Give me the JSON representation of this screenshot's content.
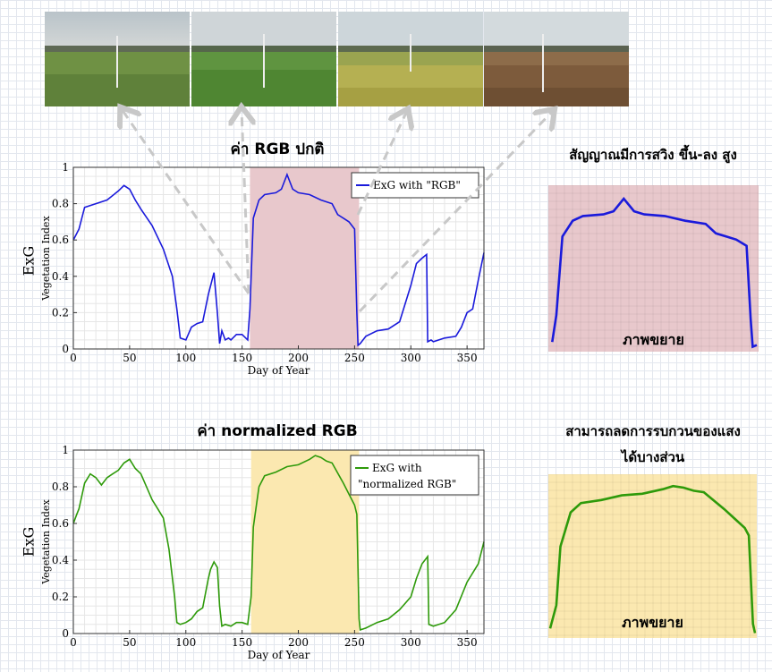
{
  "photos": [
    {
      "name": "young-wheat-field"
    },
    {
      "name": "green-wheat-field"
    },
    {
      "name": "ripening-wheat-field"
    },
    {
      "name": "harvested-field"
    }
  ],
  "top_title": "ค่า RGB ปกติ",
  "bottom_title": "ค่า normalized RGB",
  "top_side_title": "สัญญาณมีการสวิง ขึ้น-ลง สูง",
  "bottom_side_title_line1": "สามารถลดการรบกวนของแสง",
  "bottom_side_title_line2": "ได้บางส่วน",
  "zoom_label_top": "ภาพขยาย",
  "zoom_label_bottom": "ภาพขยาย",
  "exg_label_top": "ExG",
  "exg_label_bottom": "ExG",
  "colors": {
    "rgb_series": "#1a1adb",
    "norm_series": "#2e9a0a",
    "highlight_top": "#e8c8cc",
    "highlight_bottom": "#fbe8b0",
    "arrow": "#c8c8c8"
  },
  "chart_data": [
    {
      "type": "line",
      "title": "",
      "xlabel": "Day of Year",
      "ylabel": "Vegetation Index",
      "xlim": [
        0,
        365
      ],
      "ylim": [
        0,
        1
      ],
      "xticks": [
        0,
        50,
        100,
        150,
        200,
        250,
        300,
        350
      ],
      "yticks": [
        0,
        0.2,
        0.4,
        0.6,
        0.8,
        1
      ],
      "grid": true,
      "legend_position": "top-right",
      "highlight_range": [
        157,
        254
      ],
      "series": [
        {
          "name": "ExG with \"RGB\"",
          "x": [
            0,
            5,
            10,
            20,
            30,
            40,
            45,
            50,
            55,
            60,
            70,
            80,
            88,
            92,
            95,
            100,
            105,
            110,
            115,
            120,
            125,
            128,
            130,
            132,
            135,
            138,
            140,
            145,
            150,
            155,
            157,
            160,
            165,
            170,
            180,
            185,
            190,
            195,
            200,
            210,
            220,
            230,
            235,
            240,
            245,
            250,
            252,
            253,
            255,
            260,
            270,
            280,
            290,
            300,
            305,
            310,
            314,
            315,
            318,
            320,
            330,
            340,
            345,
            350,
            355,
            360,
            365
          ],
          "y": [
            0.6,
            0.66,
            0.78,
            0.8,
            0.82,
            0.87,
            0.9,
            0.88,
            0.82,
            0.77,
            0.68,
            0.55,
            0.4,
            0.22,
            0.06,
            0.05,
            0.12,
            0.14,
            0.15,
            0.3,
            0.42,
            0.2,
            0.03,
            0.1,
            0.05,
            0.06,
            0.05,
            0.08,
            0.08,
            0.05,
            0.22,
            0.72,
            0.82,
            0.85,
            0.86,
            0.88,
            0.96,
            0.88,
            0.86,
            0.85,
            0.82,
            0.8,
            0.74,
            0.72,
            0.7,
            0.66,
            0.2,
            0.02,
            0.03,
            0.07,
            0.1,
            0.11,
            0.15,
            0.35,
            0.47,
            0.5,
            0.52,
            0.04,
            0.05,
            0.04,
            0.06,
            0.07,
            0.12,
            0.2,
            0.22,
            0.38,
            0.53
          ]
        }
      ]
    },
    {
      "type": "line",
      "title": "",
      "xlabel": "Day of Year",
      "ylabel": "Vegetation Index",
      "xlim": [
        0,
        365
      ],
      "ylim": [
        0,
        1
      ],
      "xticks": [
        0,
        50,
        100,
        150,
        200,
        250,
        300,
        350
      ],
      "yticks": [
        0,
        0.2,
        0.4,
        0.6,
        0.8,
        1
      ],
      "grid": true,
      "legend_position": "top-right",
      "highlight_range": [
        158,
        254
      ],
      "series": [
        {
          "name": "ExG with \"normalized RGB\"",
          "x": [
            0,
            3,
            5,
            10,
            15,
            20,
            25,
            30,
            35,
            40,
            45,
            50,
            55,
            60,
            70,
            75,
            80,
            85,
            90,
            92,
            95,
            100,
            105,
            110,
            115,
            120,
            122,
            125,
            128,
            130,
            132,
            135,
            140,
            145,
            150,
            155,
            158,
            160,
            165,
            170,
            180,
            190,
            200,
            210,
            215,
            220,
            225,
            230,
            240,
            245,
            250,
            252,
            254,
            255,
            260,
            270,
            280,
            290,
            300,
            305,
            310,
            315,
            316,
            320,
            330,
            340,
            350,
            360,
            365
          ],
          "y": [
            0.6,
            0.65,
            0.68,
            0.82,
            0.87,
            0.85,
            0.81,
            0.85,
            0.87,
            0.89,
            0.93,
            0.95,
            0.9,
            0.87,
            0.73,
            0.68,
            0.63,
            0.46,
            0.2,
            0.06,
            0.05,
            0.06,
            0.08,
            0.12,
            0.14,
            0.3,
            0.35,
            0.39,
            0.36,
            0.15,
            0.04,
            0.05,
            0.04,
            0.06,
            0.06,
            0.05,
            0.2,
            0.58,
            0.8,
            0.86,
            0.88,
            0.91,
            0.92,
            0.95,
            0.97,
            0.96,
            0.94,
            0.93,
            0.82,
            0.76,
            0.7,
            0.65,
            0.08,
            0.02,
            0.03,
            0.06,
            0.08,
            0.13,
            0.2,
            0.3,
            0.38,
            0.42,
            0.05,
            0.04,
            0.06,
            0.13,
            0.28,
            0.38,
            0.5
          ]
        }
      ]
    }
  ]
}
